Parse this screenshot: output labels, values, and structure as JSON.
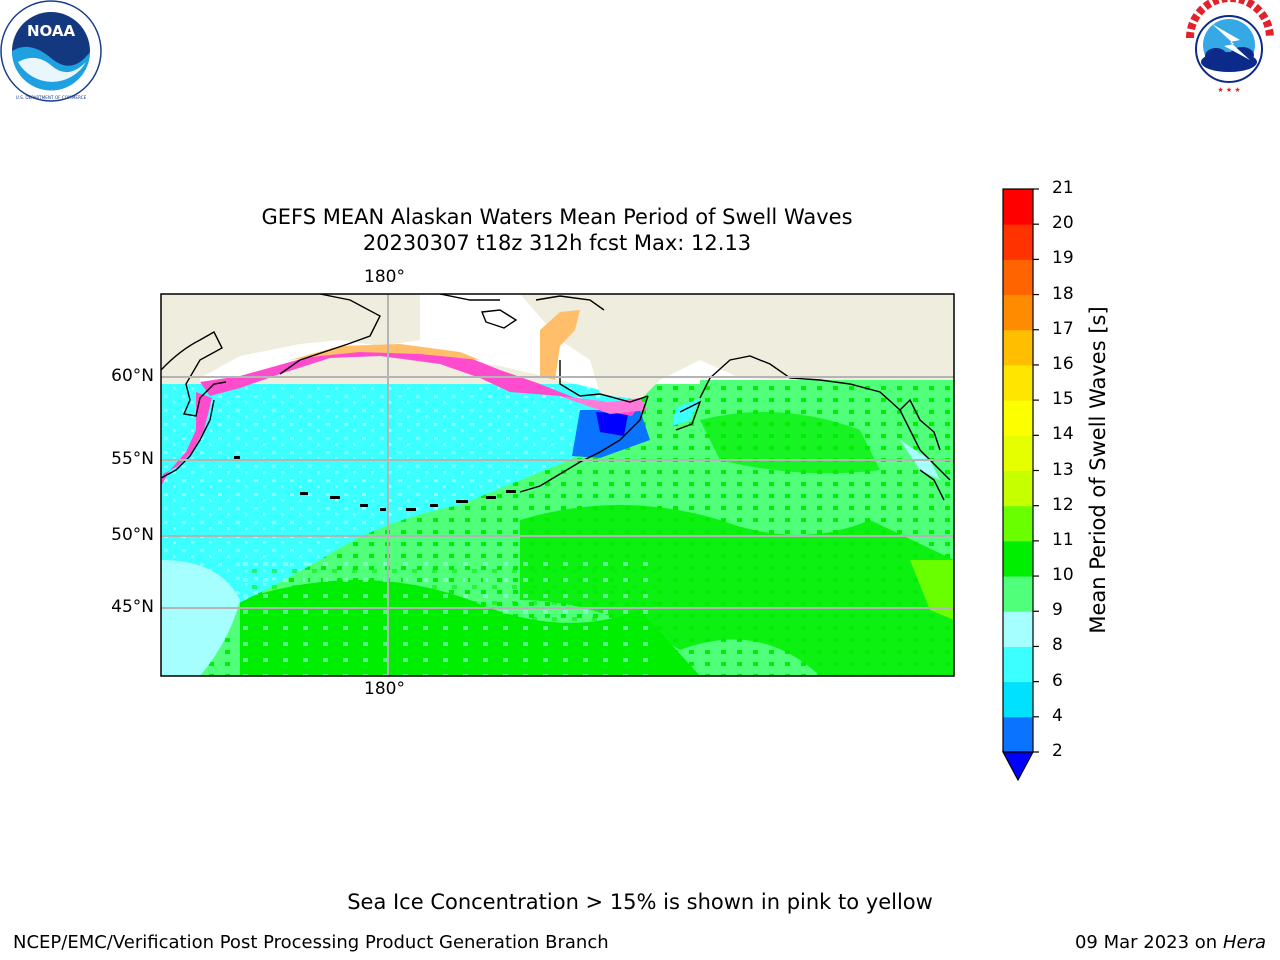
{
  "logos": {
    "noaa": {
      "text": "NOAA",
      "ring_text": "NATIONAL OCEANIC AND ATMOSPHERIC ADMINISTRATION · U.S. DEPARTMENT OF COMMERCE"
    },
    "nws": {
      "ring_text": "NATIONAL WEATHER SERVICE"
    }
  },
  "title": {
    "line1": "GEFS MEAN Alaskan Waters Mean Period of Swell Waves",
    "line2": "20230307 t18z 312h fcst   Max: 12.13"
  },
  "map": {
    "lon_label_top": "180°",
    "lon_label_bottom": "180°",
    "lat_labels": [
      "60°N",
      "55°N",
      "50°N",
      "45°N"
    ],
    "colors": {
      "land": "#efedde",
      "ice_free_land": "#ffffff",
      "gridline": "#b4b4b4",
      "coast": "#000000"
    }
  },
  "colorbar": {
    "label": "Mean Period of Swell Waves [s]",
    "ticks": [
      "21",
      "20",
      "19",
      "18",
      "17",
      "16",
      "15",
      "14",
      "13",
      "12",
      "11",
      "10",
      "9",
      "8",
      "6",
      "4",
      "2"
    ],
    "bins": [
      {
        "lo": 2,
        "hi": 4,
        "color": "#0a73ff"
      },
      {
        "lo": 4,
        "hi": 6,
        "color": "#00e1ff"
      },
      {
        "lo": 6,
        "hi": 8,
        "color": "#3cffff"
      },
      {
        "lo": 8,
        "hi": 9,
        "color": "#a6ffff"
      },
      {
        "lo": 9,
        "hi": 10,
        "color": "#50ff7a"
      },
      {
        "lo": 10,
        "hi": 11,
        "color": "#00ee00"
      },
      {
        "lo": 11,
        "hi": 12,
        "color": "#6aff00"
      },
      {
        "lo": 12,
        "hi": 13,
        "color": "#c6ff00"
      },
      {
        "lo": 13,
        "hi": 14,
        "color": "#e6ff00"
      },
      {
        "lo": 14,
        "hi": 15,
        "color": "#fbff00"
      },
      {
        "lo": 15,
        "hi": 16,
        "color": "#ffe600"
      },
      {
        "lo": 16,
        "hi": 17,
        "color": "#ffbe00"
      },
      {
        "lo": 17,
        "hi": 18,
        "color": "#ff8c00"
      },
      {
        "lo": 18,
        "hi": 19,
        "color": "#ff6400"
      },
      {
        "lo": 19,
        "hi": 20,
        "color": "#ff3200"
      },
      {
        "lo": 20,
        "hi": 21,
        "color": "#ff0000"
      }
    ],
    "under_color": "#0000ff"
  },
  "footer": {
    "ice_note": "Sea Ice Concentration > 15% is shown in pink to yellow",
    "credit": "NCEP/EMC/Verification Post Processing Product Generation Branch",
    "date": "09 Mar 2023 on",
    "machine": "Hera"
  }
}
